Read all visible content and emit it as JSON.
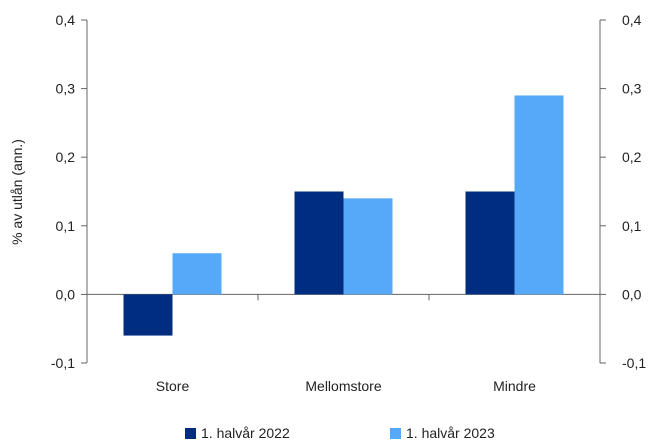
{
  "chart_data": {
    "type": "bar",
    "categories": [
      "Store",
      "Mellomstore",
      "Mindre"
    ],
    "series": [
      {
        "name": "1. halvår 2022",
        "values": [
          -0.06,
          0.15,
          0.15
        ],
        "color": "#002d7f"
      },
      {
        "name": "1. halvår 2023",
        "values": [
          0.06,
          0.14,
          0.29
        ],
        "color": "#56a8f8"
      }
    ],
    "ylabel": "% av utlån (ann.)",
    "ylim": [
      -0.1,
      0.4
    ],
    "yticks": [
      -0.1,
      0.0,
      0.1,
      0.2,
      0.3,
      0.4
    ],
    "ytick_labels": [
      "-0,1",
      "0,0",
      "0,1",
      "0,2",
      "0,3",
      "0,4"
    ],
    "secondary_y_axis": true,
    "grid": false,
    "legend_position": "bottom"
  }
}
